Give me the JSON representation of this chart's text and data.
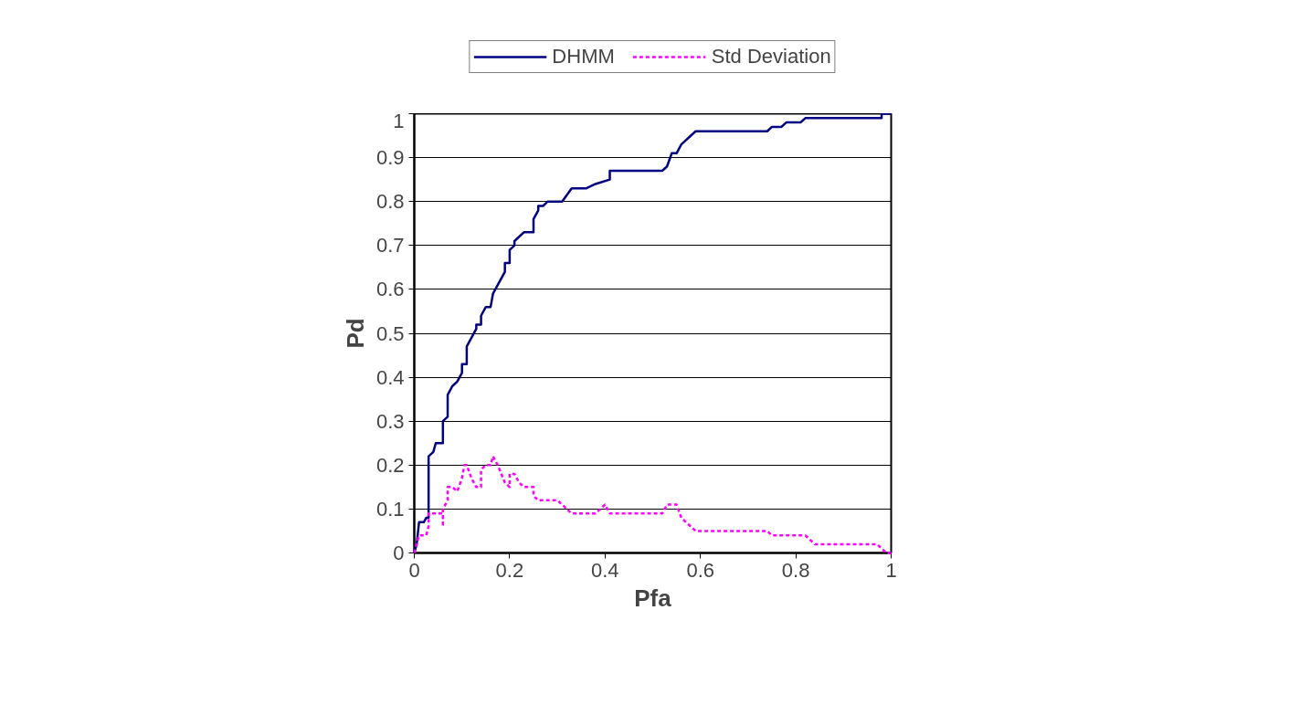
{
  "chart_data": {
    "type": "line",
    "xlabel": "Pfa",
    "ylabel": "Pd",
    "xlim": [
      0,
      1
    ],
    "ylim": [
      0,
      1
    ],
    "xticks": [
      0,
      0.2,
      0.4,
      0.6,
      0.8,
      1
    ],
    "yticks": [
      0,
      0.1,
      0.2,
      0.3,
      0.4,
      0.5,
      0.6,
      0.7,
      0.8,
      0.9,
      1
    ],
    "grid": "y",
    "legend": "top",
    "series": [
      {
        "name": "DHMM",
        "color": "#000080",
        "line_style": "solid",
        "x": [
          0,
          0.005,
          0.01,
          0.02,
          0.025,
          0.03,
          0.03,
          0.04,
          0.045,
          0.06,
          0.06,
          0.07,
          0.07,
          0.08,
          0.09,
          0.1,
          0.1,
          0.11,
          0.11,
          0.13,
          0.13,
          0.14,
          0.14,
          0.15,
          0.16,
          0.165,
          0.19,
          0.19,
          0.2,
          0.2,
          0.21,
          0.21,
          0.23,
          0.25,
          0.25,
          0.26,
          0.26,
          0.27,
          0.28,
          0.31,
          0.33,
          0.36,
          0.38,
          0.41,
          0.41,
          0.42,
          0.52,
          0.53,
          0.54,
          0.55,
          0.56,
          0.59,
          0.6,
          0.74,
          0.75,
          0.77,
          0.78,
          0.81,
          0.82,
          0.98,
          0.98,
          1
        ],
        "values": [
          0,
          0.02,
          0.07,
          0.07,
          0.08,
          0.08,
          0.22,
          0.23,
          0.25,
          0.25,
          0.3,
          0.31,
          0.36,
          0.38,
          0.39,
          0.41,
          0.43,
          0.43,
          0.47,
          0.51,
          0.52,
          0.52,
          0.54,
          0.56,
          0.56,
          0.59,
          0.64,
          0.66,
          0.66,
          0.69,
          0.7,
          0.71,
          0.73,
          0.73,
          0.76,
          0.78,
          0.79,
          0.79,
          0.8,
          0.8,
          0.83,
          0.83,
          0.84,
          0.85,
          0.87,
          0.87,
          0.87,
          0.88,
          0.91,
          0.91,
          0.93,
          0.96,
          0.96,
          0.96,
          0.97,
          0.97,
          0.98,
          0.98,
          0.99,
          0.99,
          1,
          1
        ]
      },
      {
        "name": "Std Deviation",
        "color": "#ff00ff",
        "line_style": "dashed",
        "x": [
          0,
          0.005,
          0.01,
          0.025,
          0.03,
          0.03,
          0.06,
          0.06,
          0.06,
          0.07,
          0.07,
          0.08,
          0.09,
          0.1,
          0.105,
          0.11,
          0.12,
          0.13,
          0.14,
          0.14,
          0.15,
          0.16,
          0.165,
          0.175,
          0.19,
          0.2,
          0.2,
          0.21,
          0.22,
          0.23,
          0.25,
          0.25,
          0.26,
          0.3,
          0.31,
          0.33,
          0.38,
          0.4,
          0.41,
          0.52,
          0.53,
          0.55,
          0.56,
          0.59,
          0.74,
          0.75,
          0.82,
          0.84,
          0.97,
          0.98,
          0.99,
          1
        ],
        "values": [
          0,
          0.02,
          0.04,
          0.04,
          0.06,
          0.09,
          0.09,
          0.06,
          0.1,
          0.12,
          0.15,
          0.15,
          0.14,
          0.17,
          0.2,
          0.2,
          0.17,
          0.15,
          0.15,
          0.19,
          0.2,
          0.2,
          0.22,
          0.2,
          0.16,
          0.15,
          0.18,
          0.18,
          0.16,
          0.15,
          0.15,
          0.13,
          0.12,
          0.12,
          0.11,
          0.09,
          0.09,
          0.11,
          0.09,
          0.09,
          0.11,
          0.11,
          0.08,
          0.05,
          0.05,
          0.04,
          0.04,
          0.02,
          0.02,
          0.01,
          0,
          0
        ]
      }
    ]
  }
}
